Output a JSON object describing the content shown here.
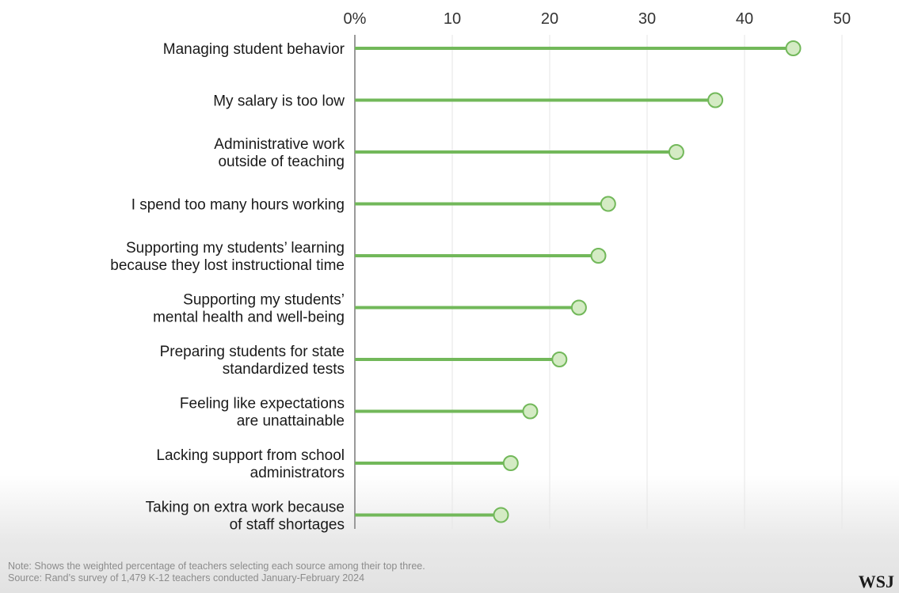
{
  "chart_data": {
    "type": "lollipop",
    "categories": [
      [
        "Managing student behavior"
      ],
      [
        "My salary is too low"
      ],
      [
        "Administrative work",
        "outside of teaching"
      ],
      [
        "I spend too many hours working"
      ],
      [
        "Supporting my students’ learning",
        "because they lost instructional time"
      ],
      [
        "Supporting my students’",
        "mental health and well-being"
      ],
      [
        "Preparing students for state",
        "standardized tests"
      ],
      [
        "Feeling like expectations",
        "are unattainable"
      ],
      [
        "Lacking support from school",
        "administrators"
      ],
      [
        "Taking on extra work because",
        "of staff shortages"
      ]
    ],
    "values": [
      45,
      37,
      33,
      26,
      25,
      23,
      21,
      18,
      16,
      15
    ],
    "xticks": [
      "0%",
      "10",
      "20",
      "30",
      "40",
      "50"
    ],
    "xlim": [
      0,
      50
    ],
    "grid": true,
    "color": "#72b85a",
    "marker_fill": "#d4ebc4"
  },
  "footer": {
    "note": "Note: Shows the weighted percentage of teachers selecting each source among their top three.",
    "source": "Source: Rand’s survey of 1,479 K-12 teachers conducted January-February 2024",
    "logo": "WSJ"
  }
}
